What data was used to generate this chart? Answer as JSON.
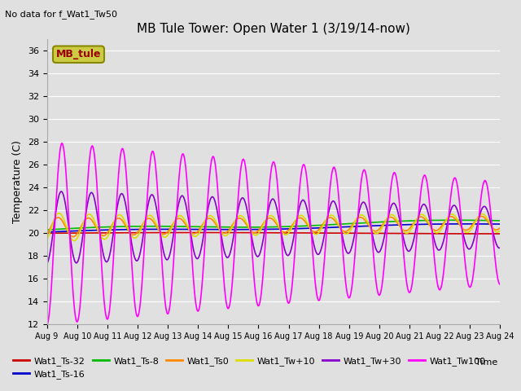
{
  "title": "MB Tule Tower: Open Water 1 (3/19/14-now)",
  "subtitle": "No data for f_Wat1_Tw50",
  "xlabel": "Time",
  "ylabel": "Temperature (C)",
  "ylim": [
    12,
    37
  ],
  "yticks": [
    12,
    14,
    16,
    18,
    20,
    22,
    24,
    26,
    28,
    30,
    32,
    34,
    36
  ],
  "x_start": 0,
  "x_end": 15,
  "legend_box_label": "MB_tule",
  "legend_box_facecolor": "#cccc44",
  "legend_box_edgecolor": "#888800",
  "legend_box_text_color": "#990000",
  "background_color": "#e0e0e0",
  "axes_bg_color": "#e0e0e0",
  "grid_color": "#ffffff",
  "series": {
    "Wat1_Ts-32": {
      "color": "#cc0000",
      "linewidth": 1.2
    },
    "Wat1_Ts-16": {
      "color": "#0000cc",
      "linewidth": 1.2
    },
    "Wat1_Ts-8": {
      "color": "#00bb00",
      "linewidth": 1.2
    },
    "Wat1_Ts0": {
      "color": "#ff8800",
      "linewidth": 1.2
    },
    "Wat1_Tw+10": {
      "color": "#dddd00",
      "linewidth": 1.2
    },
    "Wat1_Tw+30": {
      "color": "#8800cc",
      "linewidth": 1.2
    },
    "Wat1_Tw100": {
      "color": "#ff00ff",
      "linewidth": 1.2
    }
  },
  "xtick_labels": [
    "Aug 9",
    "Aug 10",
    "Aug 11",
    "Aug 12",
    "Aug 13",
    "Aug 14",
    "Aug 15",
    "Aug 16",
    "Aug 17",
    "Aug 18",
    "Aug 19",
    "Aug 20",
    "Aug 21",
    "Aug 22",
    "Aug 23",
    "Aug 24"
  ],
  "xtick_positions": [
    0,
    1,
    2,
    3,
    4,
    5,
    6,
    7,
    8,
    9,
    10,
    11,
    12,
    13,
    14,
    15
  ]
}
